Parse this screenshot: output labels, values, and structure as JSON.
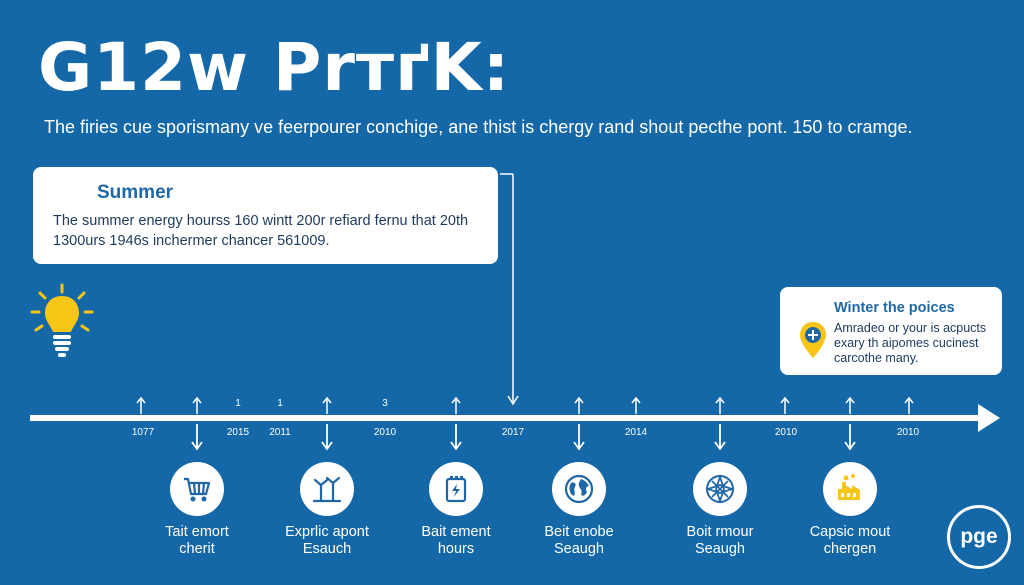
{
  "title": "G12w PrтґK:",
  "subtitle": "The firies cue sporismany ve feerpourer conchige, ane thist is chergy rand shout pecthe pont. 150 to cramge.",
  "summer": {
    "title": "Summer",
    "line1": "The summer energy hourss 160 wintt 200r refiard fernu that 20th",
    "line2": "1300urs 1946s inchermer chancer 561009."
  },
  "winter": {
    "title": "Winter the poices",
    "line1": "Amradeo or your is acpucts",
    "line2": "exary th aipomes cucinest",
    "line3": "carcothe many."
  },
  "timeline": {
    "ticks": [
      {
        "top": "",
        "bottom": "1077"
      },
      {
        "top": "",
        "bottom": "2015"
      },
      {
        "top": "1",
        "bottom": ""
      },
      {
        "top": "1",
        "bottom": "2011"
      },
      {
        "top": "3",
        "bottom": "2010"
      },
      {
        "top": "",
        "bottom": "2017"
      },
      {
        "top": "",
        "bottom": "2014"
      },
      {
        "top": "",
        "bottom": "2010"
      },
      {
        "top": "",
        "bottom": "2010"
      }
    ],
    "milestones": [
      {
        "icon": "shopping-cart-icon",
        "line1": "Tait emort",
        "line2": "cherit"
      },
      {
        "icon": "wind-turbine-icon",
        "line1": "Exprlic apont",
        "line2": "Esauch"
      },
      {
        "icon": "battery-icon",
        "line1": "Bait ement",
        "line2": "hours"
      },
      {
        "icon": "globe-icon",
        "line1": "Beit enobe",
        "line2": "Seaugh"
      },
      {
        "icon": "compass-icon",
        "line1": "Boit rmour",
        "line2": "Seaugh"
      },
      {
        "icon": "factory-icon",
        "line1": "Capsic mout",
        "line2": "chergen"
      }
    ]
  },
  "logo": "pge",
  "colors": {
    "background": "#1468a8",
    "card": "#ffffff",
    "accent_blue": "#1f67a6",
    "accent_yellow": "#f7c515"
  }
}
